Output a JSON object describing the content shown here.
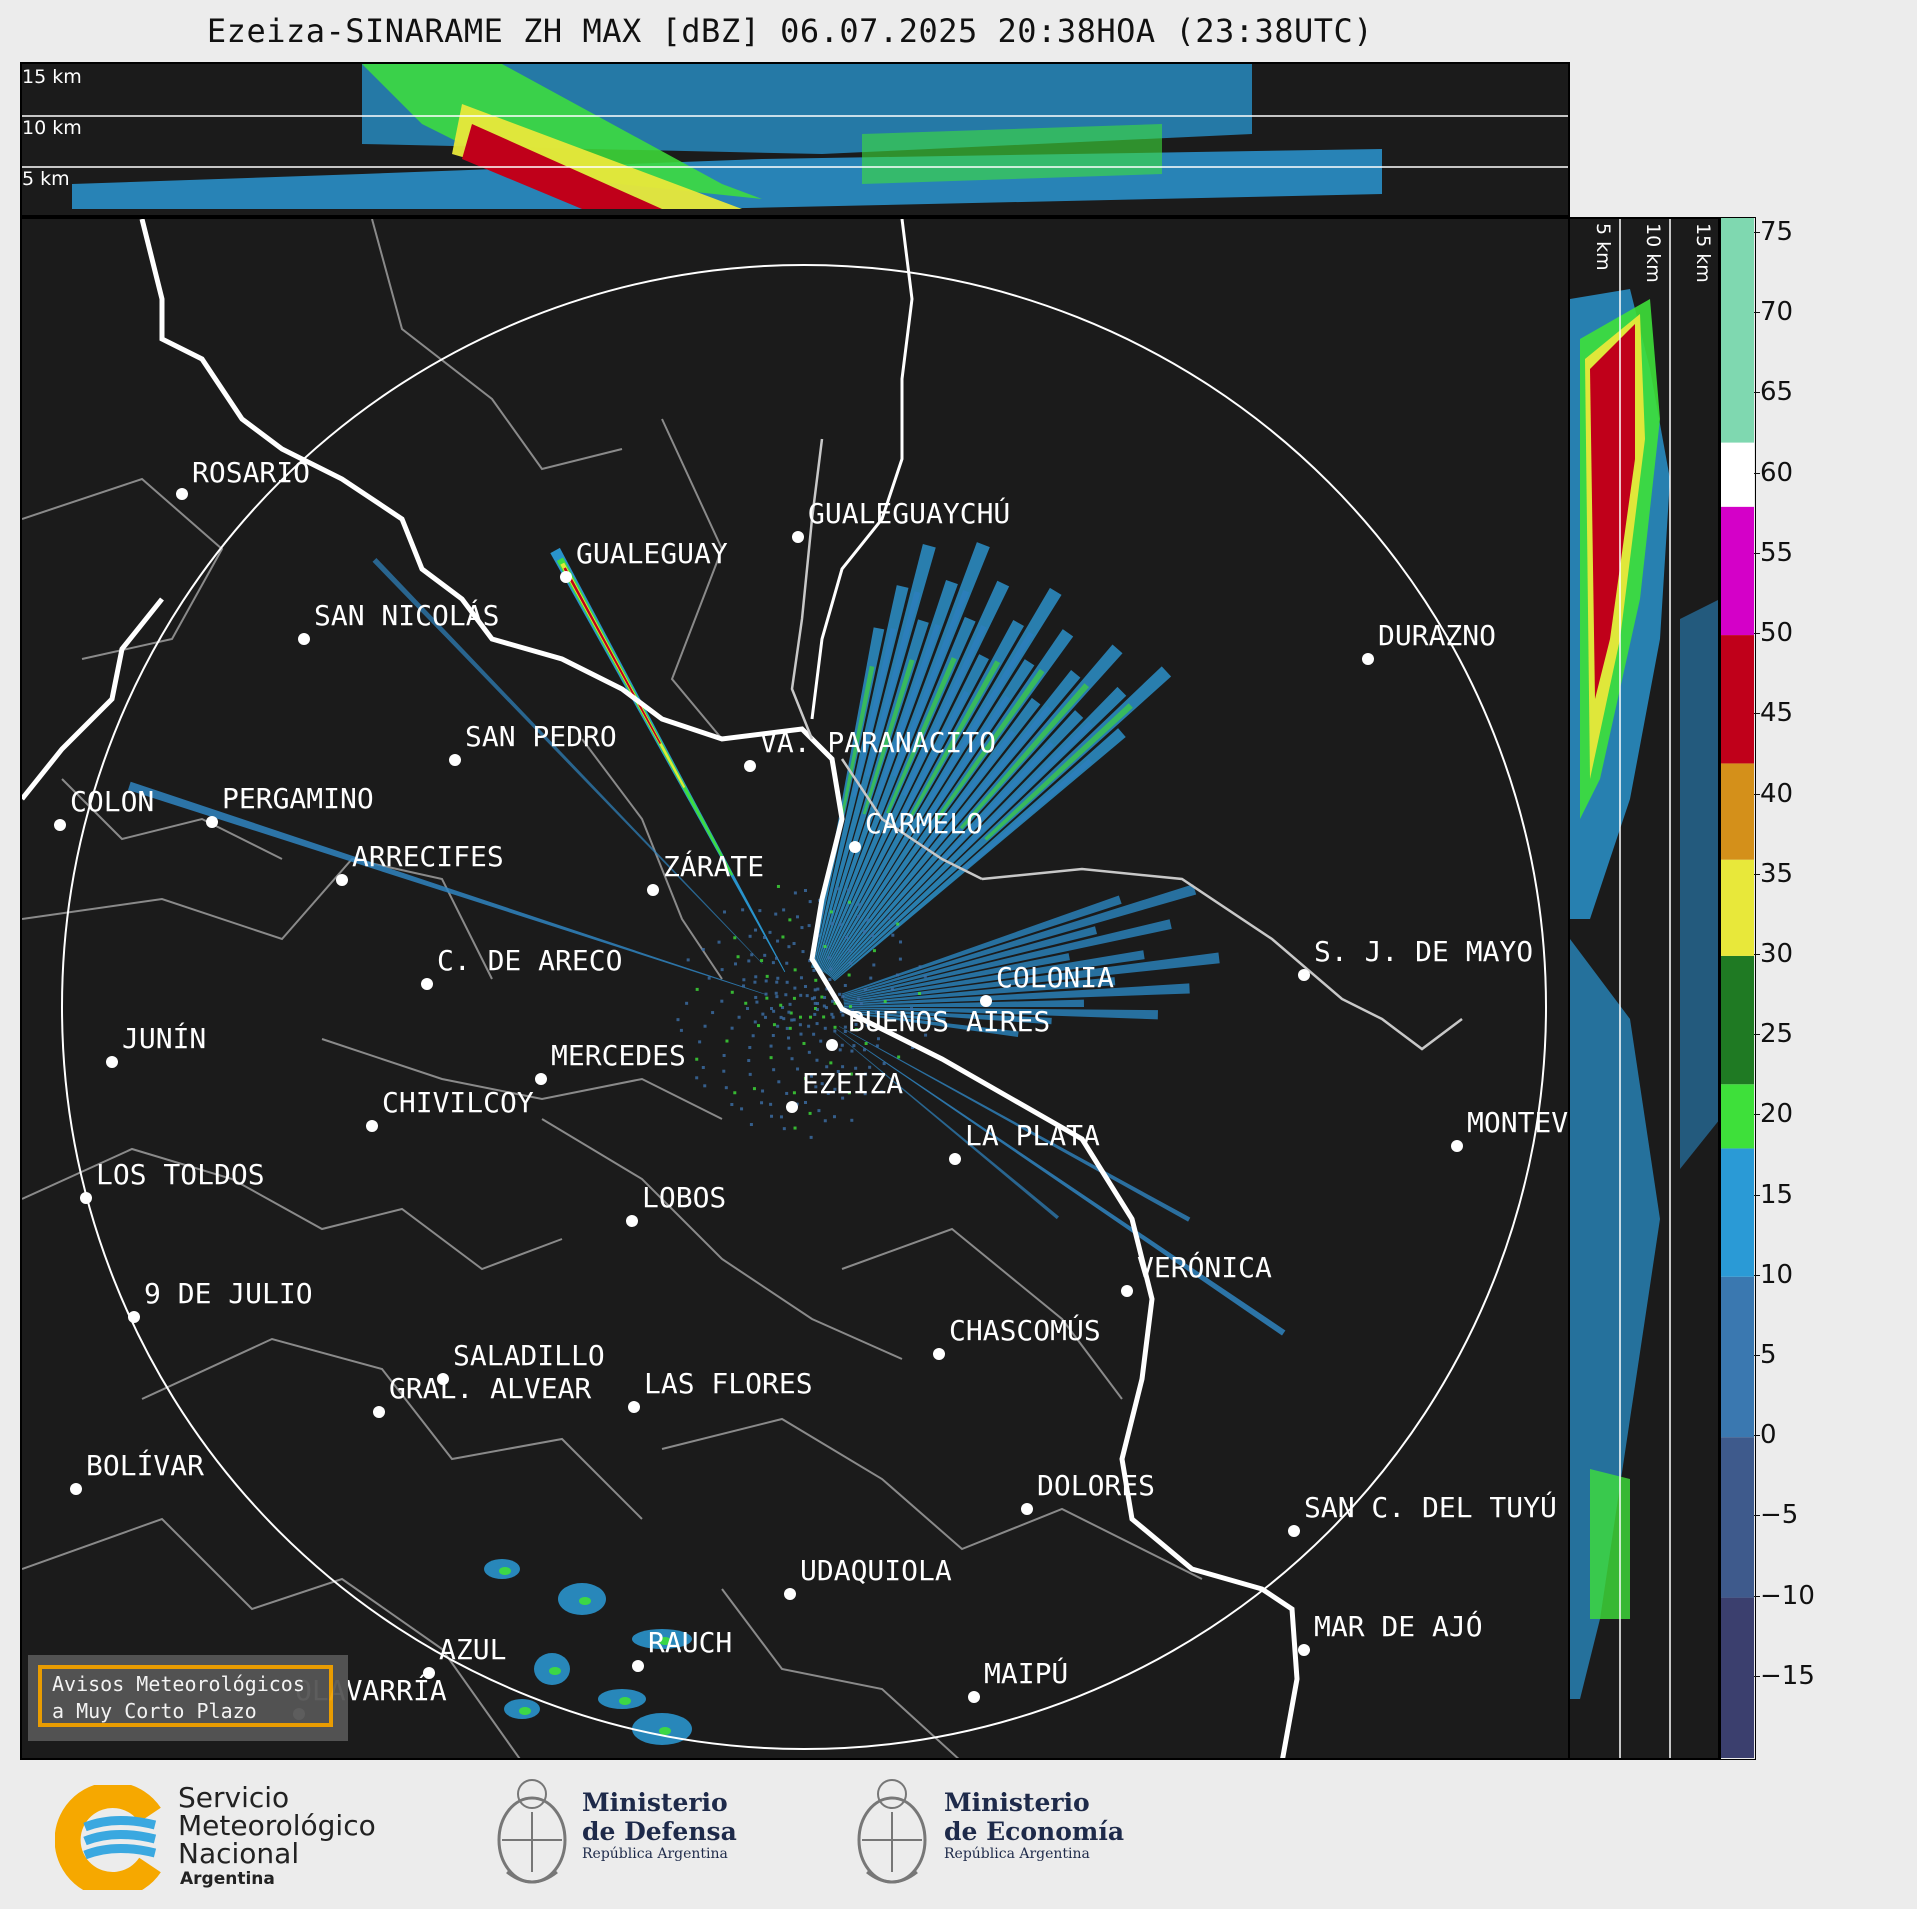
{
  "title": "Ezeiza-SINARAME ZH MAX [dBZ] 06.07.2025 20:38HOA (23:38UTC)",
  "top_panel": {
    "alt_labels": [
      "15 km",
      "10 km",
      "5 km"
    ]
  },
  "side_panel": {
    "alt_labels": [
      "5 km",
      "10 km",
      "15 km"
    ]
  },
  "colorbar": {
    "ticks": [
      "75",
      "70",
      "65",
      "60",
      "55",
      "50",
      "45",
      "40",
      "35",
      "30",
      "25",
      "20",
      "15",
      "10",
      "5",
      "0",
      "−5",
      "−10",
      "−15"
    ],
    "min": -20,
    "max": 76,
    "bands": [
      {
        "from": -20,
        "to": -10,
        "color": "#3b3f6e"
      },
      {
        "from": -10,
        "to": 0,
        "color": "#3e5a8c"
      },
      {
        "from": 0,
        "to": 10,
        "color": "#3a78b0"
      },
      {
        "from": 10,
        "to": 18,
        "color": "#2a9ad6"
      },
      {
        "from": 18,
        "to": 22,
        "color": "#3ee03a"
      },
      {
        "from": 22,
        "to": 30,
        "color": "#1f7a23"
      },
      {
        "from": 30,
        "to": 36,
        "color": "#e8e83a"
      },
      {
        "from": 36,
        "to": 42,
        "color": "#d4901a"
      },
      {
        "from": 42,
        "to": 50,
        "color": "#c0001a"
      },
      {
        "from": 50,
        "to": 58,
        "color": "#d400c8"
      },
      {
        "from": 58,
        "to": 62,
        "color": "#ffffff"
      },
      {
        "from": 62,
        "to": 76,
        "color": "#7fd8b0"
      }
    ]
  },
  "map": {
    "cities": [
      {
        "name": "ROSARIO"
      },
      {
        "name": "GUALEGUAYCHÚ"
      },
      {
        "name": "GUALEGUAY"
      },
      {
        "name": "SAN NICOLÁS"
      },
      {
        "name": "DURAZNO"
      },
      {
        "name": "SAN PEDRO"
      },
      {
        "name": "VA. PARANACITO"
      },
      {
        "name": "COLON"
      },
      {
        "name": "PERGAMINO"
      },
      {
        "name": "CARMELO"
      },
      {
        "name": "ARRECIFES"
      },
      {
        "name": "ZÁRATE"
      },
      {
        "name": "C. DE ARECO"
      },
      {
        "name": "S. J. DE MAYO"
      },
      {
        "name": "COLONIA"
      },
      {
        "name": "JUNÍN"
      },
      {
        "name": "BUENOS AIRES"
      },
      {
        "name": "MERCEDES"
      },
      {
        "name": "EZEIZA"
      },
      {
        "name": "MONTEV"
      },
      {
        "name": "CHIVILCOY"
      },
      {
        "name": "LA PLATA"
      },
      {
        "name": "LOS TOLDOS"
      },
      {
        "name": "LOBOS"
      },
      {
        "name": "VERÓNICA"
      },
      {
        "name": "9 DE JULIO"
      },
      {
        "name": "CHASCOMÚS"
      },
      {
        "name": "SALADILLO"
      },
      {
        "name": "GRAL. ALVEAR"
      },
      {
        "name": "LAS FLORES"
      },
      {
        "name": "BOLÍVAR"
      },
      {
        "name": "DOLORES"
      },
      {
        "name": "SAN C. DEL TUYÚ"
      },
      {
        "name": "UDAQUIOLA"
      },
      {
        "name": "MAR DE AJÓ"
      },
      {
        "name": "RAUCH"
      },
      {
        "name": "AZUL"
      },
      {
        "name": "OLAVARRÍA"
      },
      {
        "name": "MAIPÚ"
      }
    ]
  },
  "notice": {
    "line1": "Avisos Meteorológicos",
    "line2": "a Muy Corto Plazo"
  },
  "footer": {
    "smn": {
      "line1": "Servicio",
      "line2": "Meteorológico",
      "line3": "Nacional",
      "line4": "Argentina"
    },
    "defensa": {
      "line1": "Ministerio",
      "line2": "de Defensa",
      "line3": "República Argentina"
    },
    "economia": {
      "line1": "Ministerio",
      "line2": "de Economía",
      "line3": "República Argentina"
    }
  }
}
